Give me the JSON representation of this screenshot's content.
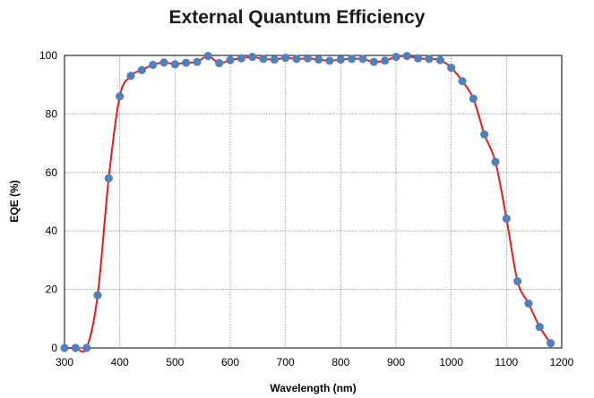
{
  "chart_data": {
    "type": "scatter",
    "title": "External Quantum Efficiency",
    "xlabel": "Wavelength (nm)",
    "ylabel": "EQE (%)",
    "xlim": [
      300,
      1200
    ],
    "ylim": [
      0,
      100
    ],
    "xticks": [
      300,
      400,
      500,
      600,
      700,
      800,
      900,
      1000,
      1100,
      1200
    ],
    "yticks": [
      0,
      20,
      40,
      60,
      80,
      100
    ],
    "grid": true,
    "legend": "none",
    "series": [
      {
        "style": "markers with smooth line",
        "marker_color": "#4f81bd",
        "line_color": "#e8191c",
        "x": [
          300,
          320,
          340,
          360,
          380,
          400,
          420,
          440,
          460,
          480,
          500,
          520,
          540,
          560,
          580,
          600,
          620,
          640,
          660,
          680,
          700,
          720,
          740,
          760,
          780,
          800,
          820,
          840,
          860,
          880,
          900,
          920,
          940,
          960,
          980,
          1000,
          1020,
          1040,
          1060,
          1080,
          1100,
          1120,
          1140,
          1160,
          1180
        ],
        "y": [
          0,
          0,
          0,
          18,
          58,
          86,
          93,
          95,
          96.8,
          97.6,
          97,
          97.5,
          97.8,
          99.8,
          97.4,
          98.4,
          99,
          99.5,
          98.8,
          98.6,
          99.2,
          98.8,
          99,
          98.6,
          98.2,
          98.6,
          98.8,
          98.8,
          97.8,
          98.2,
          99.5,
          99.8,
          99,
          98.8,
          98.4,
          95.8,
          91.2,
          85.2,
          73,
          63.6,
          44.2,
          22.8,
          15.2,
          7.2,
          1.6
        ]
      }
    ]
  }
}
